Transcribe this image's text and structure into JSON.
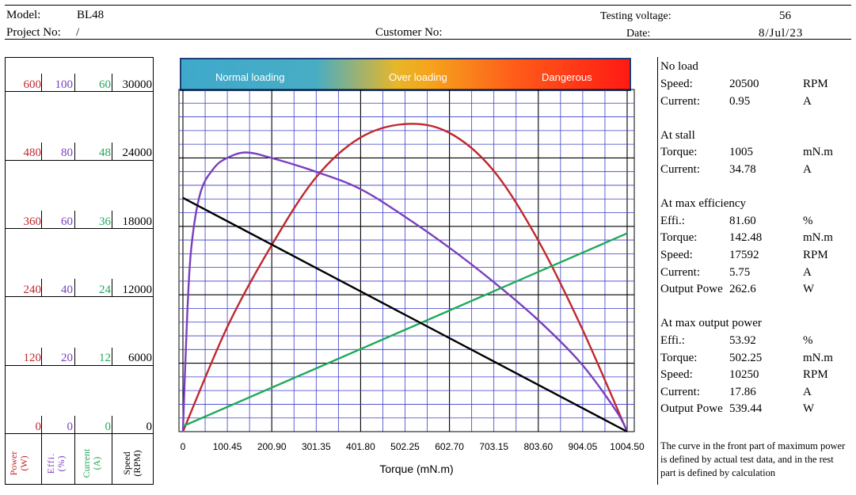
{
  "header": {
    "model_label": "Model:",
    "model_value": "BL48",
    "project_label": "Project No:",
    "project_value": "/",
    "customer_label": "Customer No:",
    "customer_value": "",
    "voltage_label": "Testing voltage:",
    "voltage_value": "56",
    "date_label": "Date:",
    "date_value": "8/Jul/23"
  },
  "banner": {
    "normal": "Normal loading",
    "over": "Over loading",
    "danger": "Dangerous"
  },
  "colors": {
    "power": "#c0282d",
    "efficiency": "#7a3fbf",
    "current": "#1faa5a",
    "speed": "#000000",
    "grid_minor": "#3c3cc8",
    "grid_major": "#000000"
  },
  "left_axes": {
    "power": {
      "title": "Power",
      "unit": "(W)",
      "ticks": [
        "600",
        "480",
        "360",
        "240",
        "120",
        "0"
      ]
    },
    "effi": {
      "title": "Effi.",
      "unit": "(%)",
      "ticks": [
        "100",
        "80",
        "60",
        "40",
        "20",
        "0"
      ]
    },
    "current": {
      "title": "Current",
      "unit": "(A)",
      "ticks": [
        "60",
        "48",
        "36",
        "24",
        "12",
        "0"
      ]
    },
    "speed": {
      "title": "Speed",
      "unit": "(RPM)",
      "ticks": [
        "30000",
        "24000",
        "18000",
        "12000",
        "6000",
        "0"
      ]
    }
  },
  "chart_data": {
    "type": "line",
    "title": "",
    "xlabel": "Torque (mN.m)",
    "x_ticks": [
      "0",
      "100.45",
      "200.90",
      "301.35",
      "401.80",
      "502.25",
      "602.70",
      "703.15",
      "803.60",
      "904.05",
      "1004.50"
    ],
    "xlim": [
      0,
      1004.5
    ],
    "grid": true,
    "series": [
      {
        "name": "Power",
        "axis": "power (W)",
        "ylim": [
          0,
          600
        ],
        "color": "#c0282d",
        "x": [
          0,
          100,
          200,
          300,
          400,
          502.25,
          600,
          700,
          800,
          900,
          1004.5
        ],
        "y": [
          0,
          183,
          326,
          445,
          515,
          539.4,
          525,
          460,
          340,
          185,
          0
        ]
      },
      {
        "name": "Effi.",
        "axis": "efficiency (%)",
        "ylim": [
          0,
          100
        ],
        "color": "#7a3fbf",
        "x": [
          0,
          10,
          20,
          40,
          70,
          100,
          142.48,
          200,
          300,
          400,
          500,
          600,
          700,
          800,
          900,
          980,
          1004.5
        ],
        "y": [
          0,
          35,
          55,
          70,
          77,
          80,
          81.6,
          80,
          76,
          71,
          63,
          54,
          44,
          33,
          20,
          6,
          0
        ]
      },
      {
        "name": "Current",
        "axis": "current (A)",
        "ylim": [
          0,
          60
        ],
        "color": "#1faa5a",
        "x": [
          0,
          1004.5
        ],
        "y": [
          0.95,
          34.78
        ]
      },
      {
        "name": "Speed",
        "axis": "speed (RPM)",
        "ylim": [
          0,
          30000
        ],
        "color": "#000000",
        "x": [
          0,
          1004.5
        ],
        "y": [
          20500,
          0
        ]
      }
    ]
  },
  "summary": {
    "noload_title": "No load",
    "noload_speed_label": "Speed:",
    "noload_speed_value": "20500",
    "noload_speed_unit": "RPM",
    "noload_current_label": "Current:",
    "noload_current_value": "0.95",
    "noload_current_unit": "A",
    "stall_title": "At stall",
    "stall_torque_label": "Torque:",
    "stall_torque_value": "1005",
    "stall_torque_unit": "mN.m",
    "stall_current_label": "Current:",
    "stall_current_value": "34.78",
    "stall_current_unit": "A",
    "maxeff_title": "At max efficiency",
    "maxeff_effi_label": "Effi.:",
    "maxeff_effi_value": "81.60",
    "maxeff_effi_unit": "%",
    "maxeff_torque_label": "Torque:",
    "maxeff_torque_value": "142.48",
    "maxeff_torque_unit": "mN.m",
    "maxeff_speed_label": "Speed:",
    "maxeff_speed_value": "17592",
    "maxeff_speed_unit": "RPM",
    "maxeff_current_label": "Current:",
    "maxeff_current_value": "5.75",
    "maxeff_current_unit": "A",
    "maxeff_power_label": "Output Powe",
    "maxeff_power_value": "262.6",
    "maxeff_power_unit": "W",
    "maxpow_title": "At max output power",
    "maxpow_effi_label": "Effi.:",
    "maxpow_effi_value": "53.92",
    "maxpow_effi_unit": "%",
    "maxpow_torque_label": "Torque:",
    "maxpow_torque_value": "502.25",
    "maxpow_torque_unit": "mN.m",
    "maxpow_speed_label": "Speed:",
    "maxpow_speed_value": "10250",
    "maxpow_speed_unit": "RPM",
    "maxpow_current_label": "Current:",
    "maxpow_current_value": "17.86",
    "maxpow_current_unit": "A",
    "maxpow_power_label": "Output Powe",
    "maxpow_power_value": "539.44",
    "maxpow_power_unit": "W",
    "note": "The curve in the front part of maximum power is defined by actual test data, and in the rest part is defined by calculation"
  }
}
